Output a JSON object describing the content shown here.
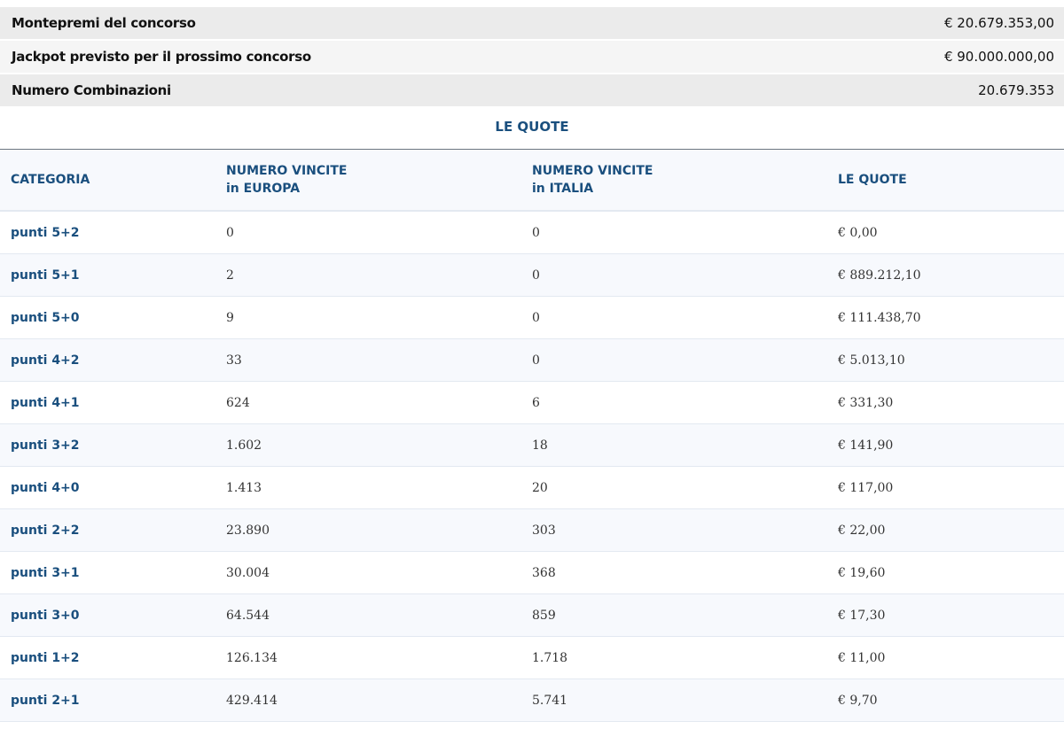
{
  "summary": [
    {
      "label": "Montepremi del concorso",
      "value": "€ 20.679.353,00"
    },
    {
      "label": "Jackpot previsto per il prossimo concorso",
      "value": "€ 90.000.000,00"
    },
    {
      "label": "Numero Combinazioni",
      "value": "20.679.353"
    }
  ],
  "quote": {
    "title": "LE QUOTE",
    "headers": {
      "categoria": "CATEGORIA",
      "europa_1": "NUMERO VINCITE",
      "europa_2": "in EUROPA",
      "italia_1": "NUMERO VINCITE",
      "italia_2": "in ITALIA",
      "quote": "LE QUOTE"
    },
    "rows": [
      {
        "categoria": "punti 5+2",
        "europa": "0",
        "italia": "0",
        "quota": "€ 0,00"
      },
      {
        "categoria": "punti 5+1",
        "europa": "2",
        "italia": "0",
        "quota": "€ 889.212,10"
      },
      {
        "categoria": "punti 5+0",
        "europa": "9",
        "italia": "0",
        "quota": "€ 111.438,70"
      },
      {
        "categoria": "punti 4+2",
        "europa": "33",
        "italia": "0",
        "quota": "€ 5.013,10"
      },
      {
        "categoria": "punti 4+1",
        "europa": "624",
        "italia": "6",
        "quota": "€ 331,30"
      },
      {
        "categoria": "punti 3+2",
        "europa": "1.602",
        "italia": "18",
        "quota": "€ 141,90"
      },
      {
        "categoria": "punti 4+0",
        "europa": "1.413",
        "italia": "20",
        "quota": "€ 117,00"
      },
      {
        "categoria": "punti 2+2",
        "europa": "23.890",
        "italia": "303",
        "quota": "€ 22,00"
      },
      {
        "categoria": "punti 3+1",
        "europa": "30.004",
        "italia": "368",
        "quota": "€ 19,60"
      },
      {
        "categoria": "punti 3+0",
        "europa": "64.544",
        "italia": "859",
        "quota": "€ 17,30"
      },
      {
        "categoria": "punti 1+2",
        "europa": "126.134",
        "italia": "1.718",
        "quota": "€ 11,00"
      },
      {
        "categoria": "punti 2+1",
        "europa": "429.414",
        "italia": "5.741",
        "quota": "€ 9,70"
      }
    ]
  }
}
